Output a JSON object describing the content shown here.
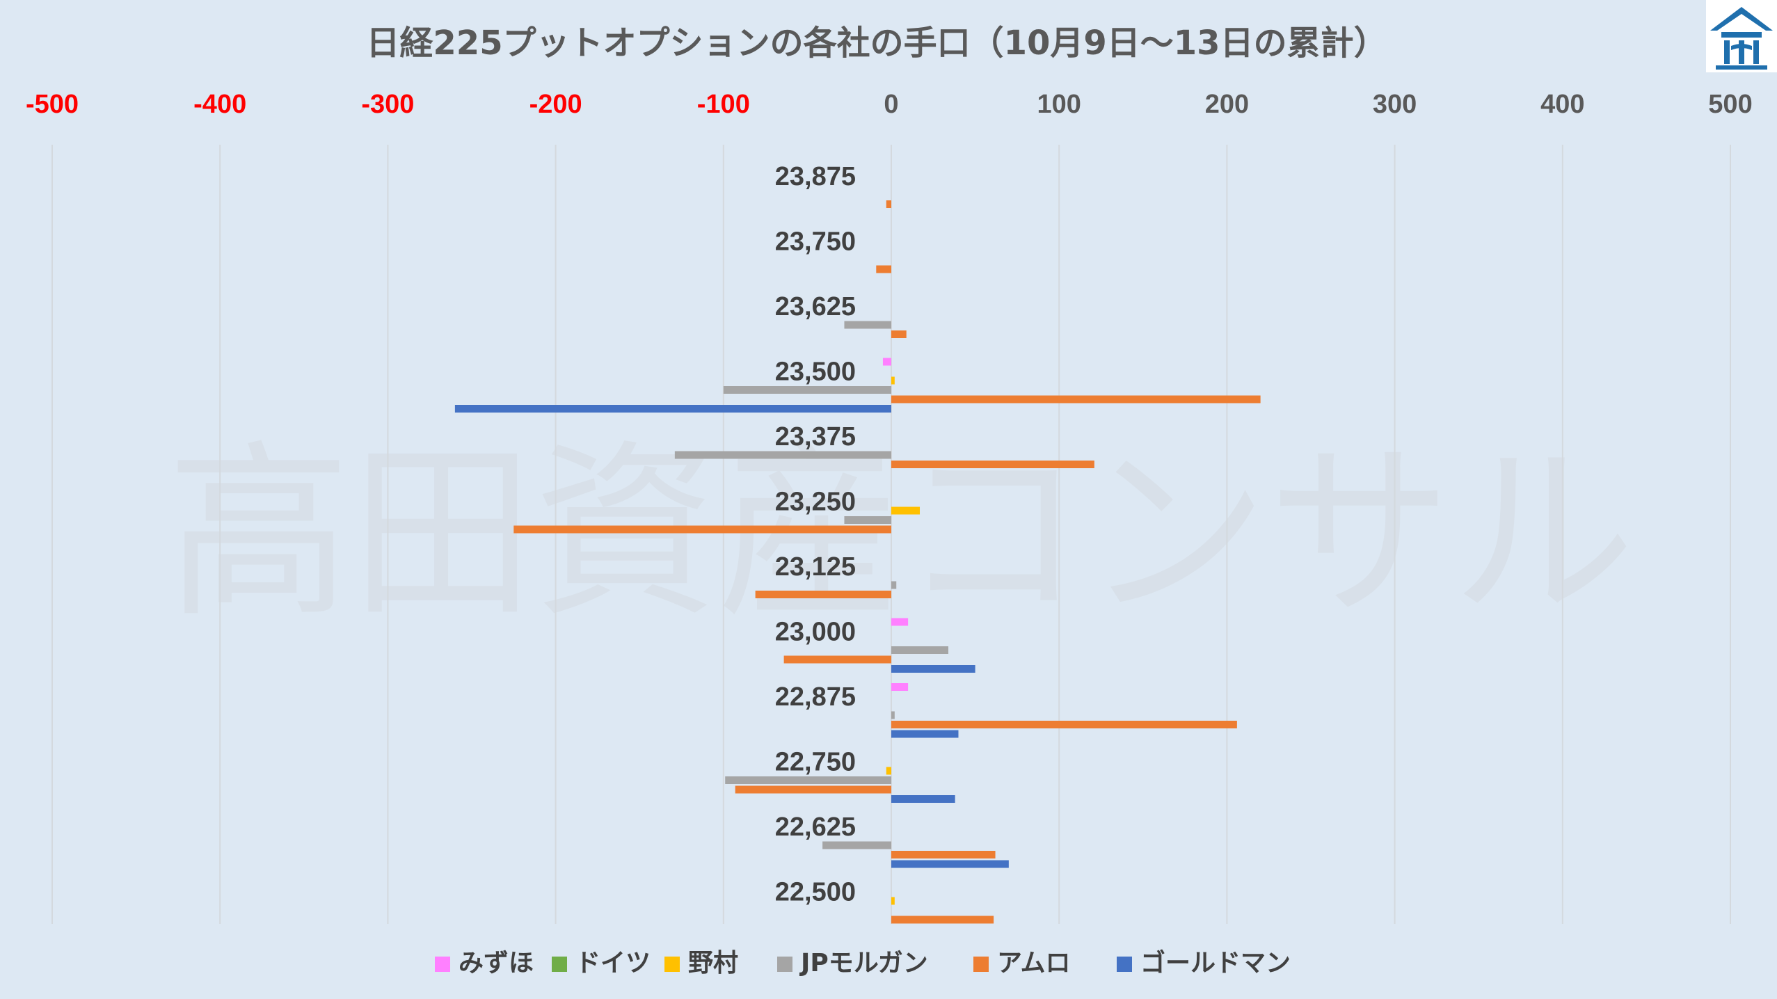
{
  "watermark": "高田資産コンサル",
  "colors": {
    "background": "#dde8f3",
    "negative_tick": "#ff0000",
    "positive_tick": "#595959",
    "grid": "#d4d9de",
    "logo": "#1f6fad"
  },
  "chart_data": {
    "type": "bar",
    "orientation": "horizontal",
    "title": "日経225プットオプションの各社の手口（10月9日～13日の累計）",
    "xlim": [
      -500,
      500
    ],
    "xticks": [
      -500,
      -400,
      -300,
      -200,
      -100,
      0,
      100,
      200,
      300,
      400,
      500
    ],
    "x_axis_position": "top",
    "grid": true,
    "legend_position": "bottom",
    "categories": [
      "23,875",
      "23,750",
      "23,625",
      "23,500",
      "23,375",
      "23,250",
      "23,125",
      "23,000",
      "22,875",
      "22,750",
      "22,625",
      "22,500"
    ],
    "series": [
      {
        "name": "みずほ",
        "color": "#ff80ff",
        "values": [
          0,
          0,
          0,
          -5,
          0,
          0,
          0,
          10,
          10,
          0,
          0,
          0
        ]
      },
      {
        "name": "ドイツ",
        "color": "#70ad47",
        "values": [
          0,
          0,
          0,
          0,
          0,
          0,
          0,
          0,
          0,
          0,
          0,
          0
        ]
      },
      {
        "name": "野村",
        "color": "#ffc000",
        "values": [
          0,
          0,
          0,
          2,
          0,
          17,
          0,
          0,
          0,
          -3,
          0,
          2
        ]
      },
      {
        "name": "JPモルガン",
        "color": "#a5a5a5",
        "values": [
          0,
          0,
          -28,
          -100,
          -129,
          -28,
          3,
          34,
          2,
          -99,
          -41,
          0
        ]
      },
      {
        "name": "アムロ",
        "color": "#ed7d31",
        "values": [
          -3,
          -9,
          9,
          220,
          121,
          -225,
          -81,
          -64,
          206,
          -93,
          62,
          61
        ]
      },
      {
        "name": "ゴールドマン",
        "color": "#4472c4",
        "values": [
          0,
          0,
          0,
          -260,
          0,
          0,
          0,
          50,
          40,
          38,
          70,
          0
        ]
      }
    ]
  }
}
